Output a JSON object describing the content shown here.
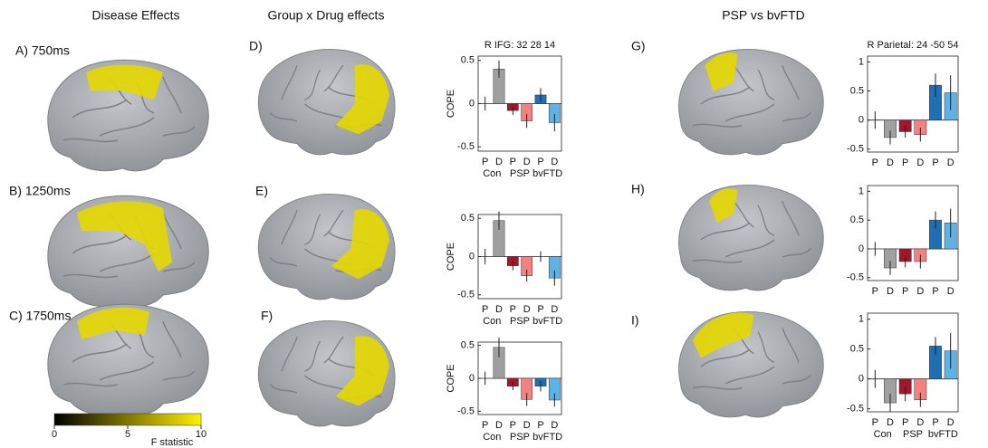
{
  "headers": [
    "Disease Effects",
    "Group x Drug effects",
    "PSP vs bvFTD"
  ],
  "panels": [
    "A) 750ms",
    "B) 1250ms",
    "C) 1750ms",
    "D)",
    "E)",
    "F)",
    "G)",
    "H)",
    "I)"
  ],
  "colorbar": {
    "range": [
      0,
      10
    ],
    "ticks": [
      0,
      5,
      10
    ],
    "label": "F statistic"
  },
  "chart_data": [
    {
      "type": "bar",
      "title": "R IFG: 32 28 14",
      "ylabel": "COPE",
      "categories": [
        "P",
        "D",
        "P",
        "D",
        "P",
        "D"
      ],
      "groups": [
        "Con",
        "PSP",
        "bvFTD"
      ],
      "values": [
        0,
        0.4,
        -0.08,
        -0.2,
        0.1,
        -0.22
      ],
      "errors": [
        0.08,
        0.1,
        0.05,
        0.08,
        0.08,
        0.1
      ],
      "colors": [
        "#a0a0a0",
        "#a0a0a0",
        "#a3172d",
        "#f08282",
        "#1e6fb3",
        "#5db3e6"
      ],
      "ylim": [
        -0.55,
        0.55
      ],
      "yticks": [
        -0.5,
        0,
        0.5
      ]
    },
    {
      "type": "bar",
      "ylabel": "COPE",
      "categories": [
        "P",
        "D",
        "P",
        "D",
        "P",
        "D"
      ],
      "groups": [
        "Con",
        "PSP",
        "bvFTD"
      ],
      "values": [
        0,
        0.47,
        -0.12,
        -0.25,
        0,
        -0.28
      ],
      "errors": [
        0.1,
        0.12,
        0.06,
        0.08,
        0.07,
        0.1
      ],
      "colors": [
        "#a0a0a0",
        "#a0a0a0",
        "#a3172d",
        "#f08282",
        "#1e6fb3",
        "#5db3e6"
      ],
      "ylim": [
        -0.55,
        0.55
      ],
      "yticks": [
        -0.5,
        0,
        0.5
      ]
    },
    {
      "type": "bar",
      "ylabel": "COPE",
      "categories": [
        "P",
        "D",
        "P",
        "D",
        "P",
        "D"
      ],
      "groups": [
        "Con",
        "PSP",
        "bvFTD"
      ],
      "values": [
        0,
        0.47,
        -0.12,
        -0.32,
        -0.12,
        -0.33
      ],
      "errors": [
        0.1,
        0.15,
        0.06,
        0.1,
        0.08,
        0.1
      ],
      "colors": [
        "#a0a0a0",
        "#a0a0a0",
        "#a3172d",
        "#f08282",
        "#1e6fb3",
        "#5db3e6"
      ],
      "ylim": [
        -0.55,
        0.55
      ],
      "yticks": [
        -0.5,
        0,
        0.5
      ]
    },
    {
      "type": "bar",
      "title": "R Parietal: 24 -50 54",
      "categories": [
        "P",
        "D",
        "P",
        "D",
        "P",
        "D"
      ],
      "values": [
        0,
        -0.3,
        -0.2,
        -0.25,
        0.6,
        0.47
      ],
      "errors": [
        0.15,
        0.12,
        0.1,
        0.12,
        0.2,
        0.3
      ],
      "colors": [
        "#a0a0a0",
        "#a0a0a0",
        "#a3172d",
        "#f08282",
        "#1e6fb3",
        "#5db3e6"
      ],
      "ylim": [
        -0.55,
        1.1
      ],
      "yticks": [
        -0.5,
        0,
        0.5,
        1
      ]
    },
    {
      "type": "bar",
      "categories": [
        "P",
        "D",
        "P",
        "D",
        "P",
        "D"
      ],
      "values": [
        0,
        -0.33,
        -0.22,
        -0.22,
        0.5,
        0.45
      ],
      "errors": [
        0.12,
        0.12,
        0.1,
        0.12,
        0.15,
        0.25
      ],
      "colors": [
        "#a0a0a0",
        "#a0a0a0",
        "#a3172d",
        "#f08282",
        "#1e6fb3",
        "#5db3e6"
      ],
      "ylim": [
        -0.55,
        1.1
      ],
      "yticks": [
        -0.5,
        0,
        0.5,
        1
      ]
    },
    {
      "type": "bar",
      "categories": [
        "P",
        "D",
        "P",
        "D",
        "P",
        "D"
      ],
      "groups": [
        "Con",
        "PSP",
        "bvFTD"
      ],
      "values": [
        0,
        -0.4,
        -0.25,
        -0.35,
        0.55,
        0.47
      ],
      "errors": [
        0.15,
        0.15,
        0.12,
        0.12,
        0.15,
        0.3
      ],
      "colors": [
        "#a0a0a0",
        "#a0a0a0",
        "#a3172d",
        "#f08282",
        "#1e6fb3",
        "#5db3e6"
      ],
      "ylim": [
        -0.55,
        1.1
      ],
      "yticks": [
        -0.5,
        0,
        0.5,
        1
      ]
    }
  ]
}
